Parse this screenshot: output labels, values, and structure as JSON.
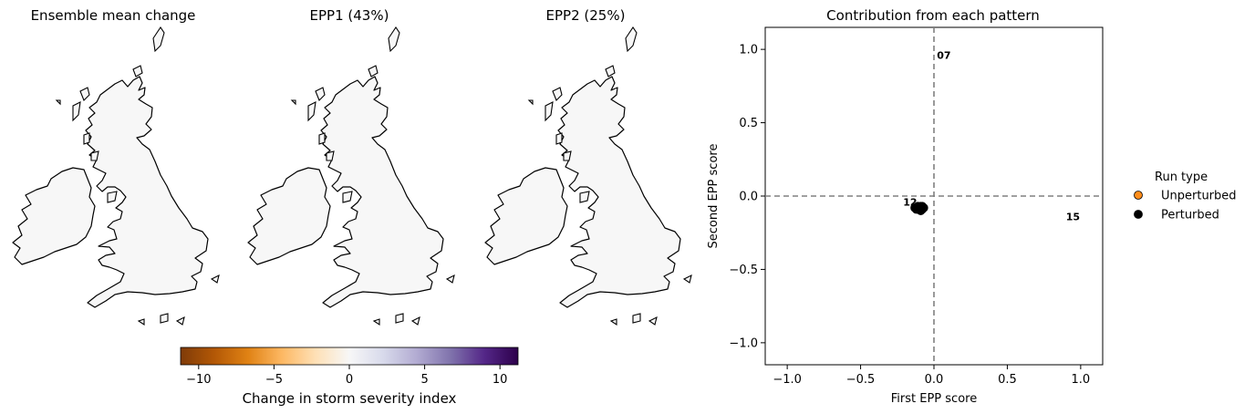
{
  "maps": [
    {
      "title": "Ensemble mean change"
    },
    {
      "title": "EPP1 (43%)"
    },
    {
      "title": "EPP2 (25%)"
    }
  ],
  "colorbar": {
    "label": "Change in storm severity index",
    "range": [
      -11.2,
      11.2
    ],
    "ticks": [
      -10,
      -5,
      0,
      5,
      10
    ],
    "tick_labels": [
      "−10",
      "−5",
      "0",
      "5",
      "10"
    ],
    "stops": [
      "#7f3b08",
      "#b35806",
      "#e08214",
      "#fdb863",
      "#fee0b6",
      "#f7f7f7",
      "#d8daeb",
      "#b2abd2",
      "#8073ac",
      "#542788",
      "#2d004b"
    ],
    "colormap": "PuOr"
  },
  "chart_data": {
    "type": "scatter",
    "title": "Contribution from each pattern",
    "xlabel": "First EPP score",
    "ylabel": "Second EPP score",
    "xlim": [
      -1.15,
      1.15
    ],
    "ylim": [
      -1.15,
      1.15
    ],
    "xticks": [
      -1.0,
      -0.5,
      0.0,
      0.5,
      1.0
    ],
    "xtick_labels": [
      "−1.0",
      "−0.5",
      "0.0",
      "0.5",
      "1.0"
    ],
    "yticks": [
      1.0,
      0.5,
      0.0,
      -0.5,
      -1.0
    ],
    "ytick_labels": [
      "1.0",
      "0.5",
      "0.0",
      "−0.5",
      "−1.0"
    ],
    "grid": false,
    "reference_lines": {
      "x": 0.0,
      "y": 0.0,
      "color": "#808080",
      "style": "dashed"
    },
    "legend": {
      "title": "Run type",
      "placement": "outside-right"
    },
    "series": [
      {
        "name": "Unperturbed",
        "color": "#ff8c1a",
        "points": [
          {
            "x": -0.09,
            "y": -0.08
          }
        ]
      },
      {
        "name": "Perturbed",
        "color": "#000000",
        "points": [
          {
            "x": -0.13,
            "y": -0.08
          },
          {
            "x": -0.12,
            "y": -0.09
          },
          {
            "x": -0.11,
            "y": -0.07
          },
          {
            "x": -0.1,
            "y": -0.09
          },
          {
            "x": -0.09,
            "y": -0.07
          },
          {
            "x": -0.08,
            "y": -0.09
          },
          {
            "x": -0.07,
            "y": -0.08
          },
          {
            "x": -0.11,
            "y": -0.09
          },
          {
            "x": -0.08,
            "y": -0.07
          },
          {
            "x": -0.1,
            "y": -0.08
          },
          {
            "x": -0.09,
            "y": -0.1
          }
        ]
      }
    ],
    "annotations": [
      {
        "text": "07",
        "x": 0.02,
        "y": 0.96
      },
      {
        "text": "12",
        "x": -0.21,
        "y": -0.04
      },
      {
        "text": "15",
        "x": 0.9,
        "y": -0.14
      }
    ]
  }
}
